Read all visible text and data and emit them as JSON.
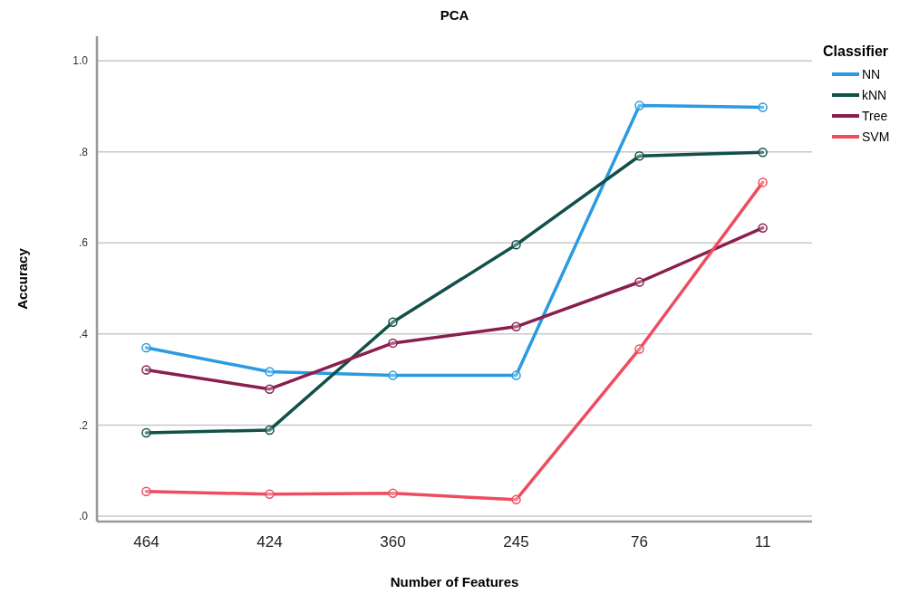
{
  "chart_data": {
    "type": "line",
    "title": "PCA",
    "xlabel": "Number of Features",
    "ylabel": "Accuracy",
    "legend_title": "Classifier",
    "categories": [
      "464",
      "424",
      "360",
      "245",
      "76",
      "11"
    ],
    "series": [
      {
        "name": "NN",
        "color": "#2a9be0",
        "values": [
          0.37,
          0.317,
          0.309,
          0.309,
          0.902,
          0.898
        ]
      },
      {
        "name": "kNN",
        "color": "#12504a",
        "values": [
          0.183,
          0.189,
          0.426,
          0.596,
          0.791,
          0.799
        ]
      },
      {
        "name": "Tree",
        "color": "#8a1f4e",
        "values": [
          0.321,
          0.279,
          0.38,
          0.416,
          0.514,
          0.633
        ]
      },
      {
        "name": "SVM",
        "color": "#ee4d5f",
        "values": [
          0.054,
          0.048,
          0.05,
          0.036,
          0.367,
          0.733
        ]
      }
    ],
    "ylim": [
      -0.012,
      1.054
    ],
    "yticks": [
      {
        "value": 0,
        "label": ".0"
      },
      {
        "value": 0.2,
        "label": ".2"
      },
      {
        "value": 0.4,
        "label": ".4"
      },
      {
        "value": 0.6,
        "label": ".6"
      },
      {
        "value": 0.8,
        "label": ".8"
      },
      {
        "value": 1,
        "label": "1.0"
      }
    ],
    "grid": "y",
    "legend": "right",
    "marker": "circle",
    "line_style": "solid"
  }
}
